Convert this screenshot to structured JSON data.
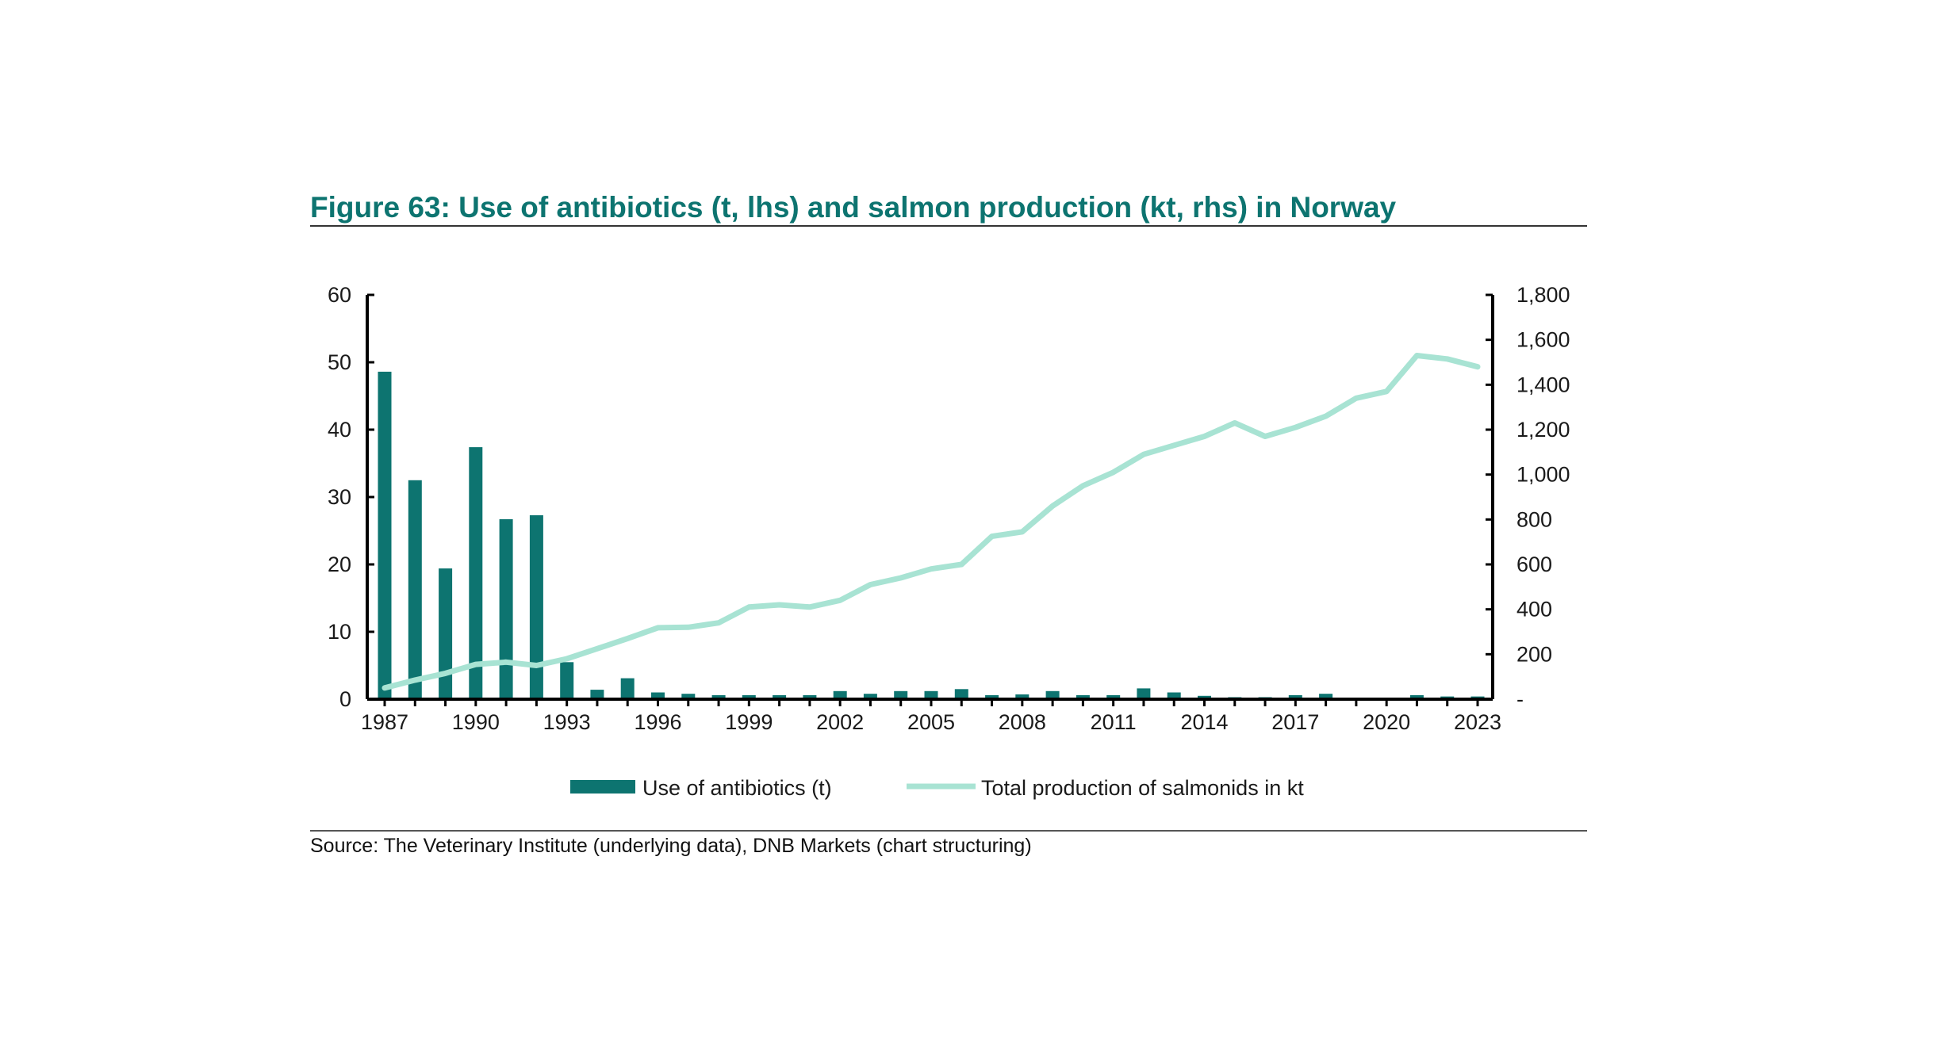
{
  "title": "Figure 63: Use of antibiotics (t, lhs) and salmon production (kt, rhs) in Norway",
  "source": "Source: The Veterinary Institute (underlying data), DNB Markets (chart structuring)",
  "colors": {
    "title": "#0d7470",
    "bars": "#0d7470",
    "line": "#a8e3d3"
  },
  "chart_data": {
    "type": "bar",
    "title": "Figure 63: Use of antibiotics (t, lhs) and salmon production (kt, rhs) in Norway",
    "x": [
      1987,
      1988,
      1989,
      1990,
      1991,
      1992,
      1993,
      1994,
      1995,
      1996,
      1997,
      1998,
      1999,
      2000,
      2001,
      2002,
      2003,
      2004,
      2005,
      2006,
      2007,
      2008,
      2009,
      2010,
      2011,
      2012,
      2013,
      2014,
      2015,
      2016,
      2017,
      2018,
      2019,
      2020,
      2021,
      2022,
      2023
    ],
    "x_tick_labels": [
      "1987",
      "1990",
      "1993",
      "1996",
      "1999",
      "2002",
      "2005",
      "2008",
      "2011",
      "2014",
      "2017",
      "2020",
      "2023"
    ],
    "y_left": {
      "ylim": [
        0,
        60
      ],
      "ticks": [
        0,
        10,
        20,
        30,
        40,
        50,
        60
      ],
      "tick_labels": [
        "0",
        "10",
        "20",
        "30",
        "40",
        "50",
        "60"
      ]
    },
    "y_right": {
      "ylim": [
        0,
        1800
      ],
      "ticks": [
        0,
        200,
        400,
        600,
        800,
        1000,
        1200,
        1400,
        1600,
        1800
      ],
      "tick_labels": [
        "-",
        "200",
        "400",
        "600",
        "800",
        "1,000",
        "1,200",
        "1,400",
        "1,600",
        "1,800"
      ]
    },
    "series": [
      {
        "name": "Use of antibiotics (t)",
        "type": "bar",
        "axis": "left",
        "values": [
          48.6,
          32.5,
          19.4,
          37.4,
          26.7,
          27.3,
          5.5,
          1.4,
          3.1,
          1.0,
          0.8,
          0.6,
          0.6,
          0.6,
          0.6,
          1.2,
          0.8,
          1.2,
          1.2,
          1.5,
          0.6,
          0.7,
          1.2,
          0.6,
          0.6,
          1.6,
          1.0,
          0.5,
          0.3,
          0.3,
          0.6,
          0.8,
          0.2,
          0.2,
          0.6,
          0.4,
          0.4
        ]
      },
      {
        "name": "Total production of salmonids in kt",
        "type": "line",
        "axis": "right",
        "values": [
          50,
          85,
          115,
          155,
          165,
          150,
          180,
          225,
          270,
          318,
          320,
          340,
          410,
          420,
          410,
          440,
          510,
          540,
          580,
          600,
          725,
          745,
          860,
          950,
          1010,
          1090,
          1130,
          1170,
          1230,
          1170,
          1210,
          1260,
          1340,
          1370,
          1530,
          1515,
          1480
        ]
      }
    ],
    "legend_position": "bottom",
    "grid": false
  }
}
